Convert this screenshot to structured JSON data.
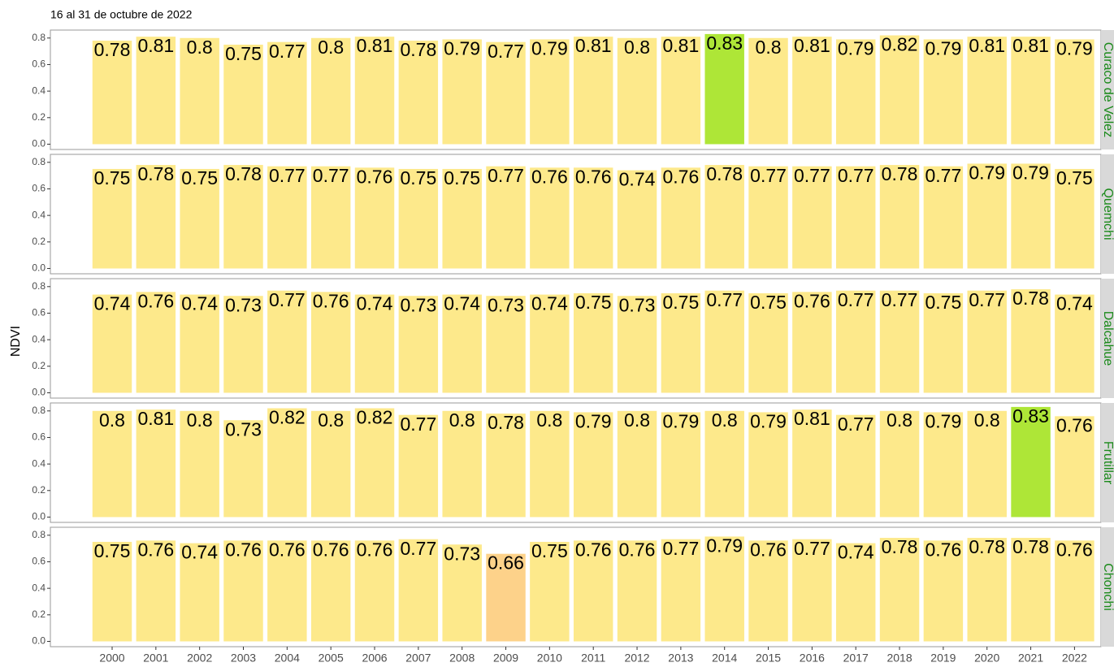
{
  "title": "16 al 31 de octubre de 2022",
  "y_label": "NDVI",
  "chart_data": [
    {
      "type": "bar",
      "facet": "Curaco de Velez",
      "categories": [
        "2000",
        "2001",
        "2002",
        "2003",
        "2004",
        "2005",
        "2006",
        "2007",
        "2008",
        "2009",
        "2010",
        "2011",
        "2012",
        "2013",
        "2014",
        "2015",
        "2016",
        "2017",
        "2018",
        "2019",
        "2020",
        "2021",
        "2022"
      ],
      "values": [
        0.78,
        0.81,
        0.8,
        0.75,
        0.77,
        0.8,
        0.81,
        0.78,
        0.79,
        0.77,
        0.79,
        0.81,
        0.8,
        0.81,
        0.83,
        0.8,
        0.81,
        0.79,
        0.82,
        0.79,
        0.81,
        0.81,
        0.79
      ],
      "colors": [
        "#fde98b",
        "#fde98b",
        "#fde98b",
        "#fde98b",
        "#fde98b",
        "#fde98b",
        "#fde98b",
        "#fde98b",
        "#fde98b",
        "#fde98b",
        "#fde98b",
        "#fde98b",
        "#fde98b",
        "#fde98b",
        "#aee637",
        "#fde98b",
        "#fde98b",
        "#fde98b",
        "#fde98b",
        "#fde98b",
        "#fde98b",
        "#fde98b",
        "#fde98b"
      ],
      "ylim": [
        -0.04,
        0.86
      ],
      "yticks": [
        {
          "value": 0,
          "label": "0.0"
        },
        0.2,
        0.4,
        0.6,
        0.8
      ]
    },
    {
      "type": "bar",
      "facet": "Quemchi",
      "categories": [
        "2000",
        "2001",
        "2002",
        "2003",
        "2004",
        "2005",
        "2006",
        "2007",
        "2008",
        "2009",
        "2010",
        "2011",
        "2012",
        "2013",
        "2014",
        "2015",
        "2016",
        "2017",
        "2018",
        "2019",
        "2020",
        "2021",
        "2022"
      ],
      "values": [
        0.75,
        0.78,
        0.75,
        0.78,
        0.77,
        0.77,
        0.76,
        0.75,
        0.75,
        0.77,
        0.76,
        0.76,
        0.74,
        0.76,
        0.78,
        0.77,
        0.77,
        0.77,
        0.78,
        0.77,
        0.79,
        0.79,
        0.75
      ],
      "colors": [
        "#fde98b",
        "#fde98b",
        "#fde98b",
        "#fde98b",
        "#fde98b",
        "#fde98b",
        "#fde98b",
        "#fde98b",
        "#fde98b",
        "#fde98b",
        "#fde98b",
        "#fde98b",
        "#fde98b",
        "#fde98b",
        "#fde98b",
        "#fde98b",
        "#fde98b",
        "#fde98b",
        "#fde98b",
        "#fde98b",
        "#fde98b",
        "#fde98b",
        "#fde98b"
      ],
      "ylim": [
        -0.04,
        0.86
      ],
      "yticks": [
        {
          "value": 0,
          "label": "0.0"
        },
        0.2,
        0.4,
        0.6,
        0.8
      ]
    },
    {
      "type": "bar",
      "facet": "Dalcahue",
      "categories": [
        "2000",
        "2001",
        "2002",
        "2003",
        "2004",
        "2005",
        "2006",
        "2007",
        "2008",
        "2009",
        "2010",
        "2011",
        "2012",
        "2013",
        "2014",
        "2015",
        "2016",
        "2017",
        "2018",
        "2019",
        "2020",
        "2021",
        "2022"
      ],
      "values": [
        0.74,
        0.76,
        0.74,
        0.73,
        0.77,
        0.76,
        0.74,
        0.73,
        0.74,
        0.73,
        0.74,
        0.75,
        0.73,
        0.75,
        0.77,
        0.75,
        0.76,
        0.77,
        0.77,
        0.75,
        0.77,
        0.78,
        0.74
      ],
      "colors": [
        "#fde98b",
        "#fde98b",
        "#fde98b",
        "#fde98b",
        "#fde98b",
        "#fde98b",
        "#fde98b",
        "#fde98b",
        "#fde98b",
        "#fde98b",
        "#fde98b",
        "#fde98b",
        "#fde98b",
        "#fde98b",
        "#fde98b",
        "#fde98b",
        "#fde98b",
        "#fde98b",
        "#fde98b",
        "#fde98b",
        "#fde98b",
        "#fde98b",
        "#fde98b"
      ],
      "ylim": [
        -0.04,
        0.86
      ],
      "yticks": [
        {
          "value": 0,
          "label": "0.0"
        },
        0.2,
        0.4,
        0.6,
        0.8
      ]
    },
    {
      "type": "bar",
      "facet": "Frutillar",
      "categories": [
        "2000",
        "2001",
        "2002",
        "2003",
        "2004",
        "2005",
        "2006",
        "2007",
        "2008",
        "2009",
        "2010",
        "2011",
        "2012",
        "2013",
        "2014",
        "2015",
        "2016",
        "2017",
        "2018",
        "2019",
        "2020",
        "2021",
        "2022"
      ],
      "values": [
        0.8,
        0.81,
        0.8,
        0.73,
        0.82,
        0.8,
        0.82,
        0.77,
        0.8,
        0.78,
        0.8,
        0.79,
        0.8,
        0.79,
        0.8,
        0.79,
        0.81,
        0.77,
        0.8,
        0.79,
        0.8,
        0.83,
        0.76
      ],
      "colors": [
        "#fde98b",
        "#fde98b",
        "#fde98b",
        "#fde98b",
        "#fde98b",
        "#fde98b",
        "#fde98b",
        "#fde98b",
        "#fde98b",
        "#fde98b",
        "#fde98b",
        "#fde98b",
        "#fde98b",
        "#fde98b",
        "#fde98b",
        "#fde98b",
        "#fde98b",
        "#fde98b",
        "#fde98b",
        "#fde98b",
        "#fde98b",
        "#aee637",
        "#fde98b"
      ],
      "ylim": [
        -0.04,
        0.86
      ],
      "yticks": [
        {
          "value": 0,
          "label": "0.0"
        },
        0.2,
        0.4,
        0.6,
        0.8
      ]
    },
    {
      "type": "bar",
      "facet": "Chonchi",
      "categories": [
        "2000",
        "2001",
        "2002",
        "2003",
        "2004",
        "2005",
        "2006",
        "2007",
        "2008",
        "2009",
        "2010",
        "2011",
        "2012",
        "2013",
        "2014",
        "2015",
        "2016",
        "2017",
        "2018",
        "2019",
        "2020",
        "2021",
        "2022"
      ],
      "values": [
        0.75,
        0.76,
        0.74,
        0.76,
        0.76,
        0.76,
        0.76,
        0.77,
        0.73,
        0.66,
        0.75,
        0.76,
        0.76,
        0.77,
        0.79,
        0.76,
        0.77,
        0.74,
        0.78,
        0.76,
        0.78,
        0.78,
        0.76
      ],
      "colors": [
        "#fde98b",
        "#fde98b",
        "#fde98b",
        "#fde98b",
        "#fde98b",
        "#fde98b",
        "#fde98b",
        "#fde98b",
        "#fde98b",
        "#fdd28a",
        "#fde98b",
        "#fde98b",
        "#fde98b",
        "#fde98b",
        "#fde98b",
        "#fde98b",
        "#fde98b",
        "#fde98b",
        "#fde98b",
        "#fde98b",
        "#fde98b",
        "#fde98b",
        "#fde98b"
      ],
      "ylim": [
        -0.04,
        0.86
      ],
      "yticks": [
        {
          "value": 0,
          "label": "0.0"
        },
        0.2,
        0.4,
        0.6,
        0.8
      ]
    }
  ]
}
